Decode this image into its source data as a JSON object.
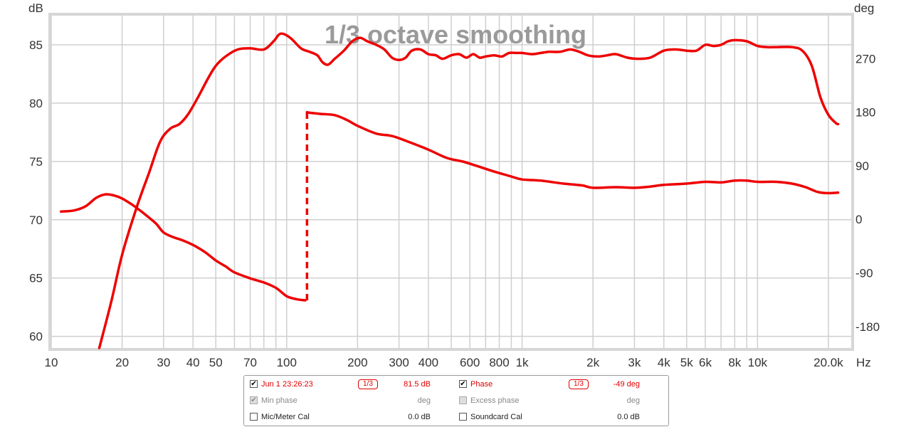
{
  "chart_data": {
    "type": "line",
    "title": "1/3 octave smoothing",
    "left_unit": "dB",
    "right_unit": "deg",
    "x_unit": "Hz",
    "xscale": "log",
    "xlim": [
      10,
      25000
    ],
    "ylim": [
      59,
      87.5
    ],
    "y2lim": [
      -216,
      342
    ],
    "grid": true,
    "y_ticks": [
      "60",
      "65",
      "70",
      "75",
      "80",
      "85"
    ],
    "y2_ticks": [
      "-180",
      "-90",
      "0",
      "90",
      "180",
      "270"
    ],
    "x_ticks": [
      {
        "value": 10,
        "label": "10"
      },
      {
        "value": 20,
        "label": "20"
      },
      {
        "value": 30,
        "label": "30"
      },
      {
        "value": 40,
        "label": "40"
      },
      {
        "value": 50,
        "label": "50"
      },
      {
        "value": 70,
        "label": "70"
      },
      {
        "value": 100,
        "label": "100"
      },
      {
        "value": 200,
        "label": "200"
      },
      {
        "value": 300,
        "label": "300"
      },
      {
        "value": 400,
        "label": "400"
      },
      {
        "value": 600,
        "label": "600"
      },
      {
        "value": 800,
        "label": "800"
      },
      {
        "value": 1000,
        "label": "1k"
      },
      {
        "value": 2000,
        "label": "2k"
      },
      {
        "value": 3000,
        "label": "3k"
      },
      {
        "value": 4000,
        "label": "4k"
      },
      {
        "value": 5000,
        "label": "5k"
      },
      {
        "value": 6000,
        "label": "6k"
      },
      {
        "value": 8000,
        "label": "8k"
      },
      {
        "value": 10000,
        "label": "10k"
      },
      {
        "value": 20000,
        "label": "20.0k"
      }
    ],
    "series": [
      {
        "name": "Jun 1 23:26:23",
        "axis": "left",
        "color": "#ee0000",
        "x": [
          16,
          18,
          20,
          23,
          26,
          29,
          32,
          35,
          38,
          42,
          46,
          50,
          55,
          62,
          70,
          80,
          88,
          93,
          98,
          105,
          115,
          125,
          135,
          142,
          150,
          160,
          175,
          190,
          205,
          220,
          240,
          260,
          280,
          300,
          320,
          340,
          370,
          400,
          430,
          460,
          500,
          540,
          580,
          620,
          660,
          700,
          760,
          820,
          880,
          950,
          1000,
          1100,
          1200,
          1300,
          1450,
          1600,
          1750,
          1900,
          2100,
          2300,
          2500,
          2800,
          3100,
          3500,
          4000,
          4500,
          5000,
          5500,
          6000,
          6500,
          7000,
          7500,
          8000,
          9000,
          10000,
          11000,
          12000,
          14000,
          15500,
          17000,
          18500,
          20000,
          21500,
          22000
        ],
        "values": [
          59,
          63,
          67,
          71,
          74,
          76.7,
          77.8,
          78.2,
          79,
          80.5,
          82,
          83.2,
          84,
          84.6,
          84.7,
          84.6,
          85.3,
          85.9,
          85.9,
          85.5,
          84.7,
          84.4,
          84.1,
          83.5,
          83.3,
          83.8,
          84.5,
          85.3,
          85.6,
          85.3,
          85,
          84.6,
          83.9,
          83.7,
          83.9,
          84.5,
          84.6,
          84.2,
          84.1,
          83.8,
          84.1,
          84.2,
          83.9,
          84.2,
          83.9,
          84,
          84.1,
          84,
          84.3,
          84.3,
          84.3,
          84.2,
          84.3,
          84.4,
          84.4,
          84.6,
          84.4,
          84.1,
          84,
          84.1,
          84.2,
          83.9,
          83.8,
          83.9,
          84.5,
          84.6,
          84.5,
          84.5,
          85,
          84.9,
          85,
          85.3,
          85.4,
          85.3,
          84.9,
          84.8,
          84.8,
          84.8,
          84.5,
          83.2,
          80.5,
          79,
          78.3,
          78.2
        ]
      },
      {
        "name": "Phase",
        "axis": "right",
        "color": "#ee0000",
        "x": [
          11,
          12.5,
          14,
          15.5,
          17,
          18.5,
          20,
          22,
          24,
          26,
          28,
          30,
          33,
          36,
          40,
          45,
          50,
          55,
          60,
          70,
          80,
          90,
          100,
          110,
          120,
          122,
          125,
          140,
          160,
          180,
          200,
          240,
          280,
          330,
          400,
          480,
          560,
          650,
          750,
          900,
          1000,
          1200,
          1500,
          1800,
          2000,
          2500,
          3000,
          3500,
          4000,
          5000,
          6000,
          7000,
          8000,
          9000,
          10000,
          12000,
          14000,
          16000,
          18000,
          20000,
          22000
        ],
        "values": [
          13,
          15,
          22,
          36,
          42,
          40,
          35,
          25,
          14,
          3,
          -8,
          -22,
          -30,
          -35,
          -43,
          -55,
          -69,
          -79,
          -89,
          -99,
          -106,
          -115,
          -129,
          -134,
          -136,
          180,
          179,
          177,
          175,
          167,
          157,
          144,
          140,
          130,
          117,
          103,
          97,
          89,
          81,
          72,
          67,
          65,
          60,
          57,
          53,
          54,
          53,
          55,
          58,
          60,
          63,
          62,
          65,
          65,
          63,
          63,
          60,
          54,
          46,
          44,
          45
        ],
        "dashed_wrap": {
          "x": 122,
          "from": -136,
          "to": 180
        }
      }
    ]
  },
  "legend": {
    "rows": [
      [
        {
          "checked": true,
          "enabled": true,
          "label": "Jun 1 23:26:23",
          "smoothing": "1/3",
          "value": "81.5 dB",
          "tone": "red"
        },
        {
          "checked": true,
          "enabled": true,
          "label": "Phase",
          "smoothing": "1/3",
          "value": "-49 deg",
          "tone": "red"
        }
      ],
      [
        {
          "checked": true,
          "enabled": false,
          "label": "Min phase",
          "smoothing": "",
          "value": "deg",
          "tone": "grey"
        },
        {
          "checked": false,
          "enabled": false,
          "label": "Excess phase",
          "smoothing": "",
          "value": "deg",
          "tone": "grey"
        }
      ],
      [
        {
          "checked": false,
          "enabled": true,
          "label": "Mic/Meter Cal",
          "smoothing": "",
          "value": "0.0 dB",
          "tone": "dark"
        },
        {
          "checked": false,
          "enabled": true,
          "label": "Soundcard Cal",
          "smoothing": "",
          "value": "0.0 dB",
          "tone": "dark"
        }
      ]
    ],
    "check_glyph": "✔",
    "colors": {
      "active": "#e00000",
      "disabled": "#888888",
      "normal": "#222222"
    }
  }
}
